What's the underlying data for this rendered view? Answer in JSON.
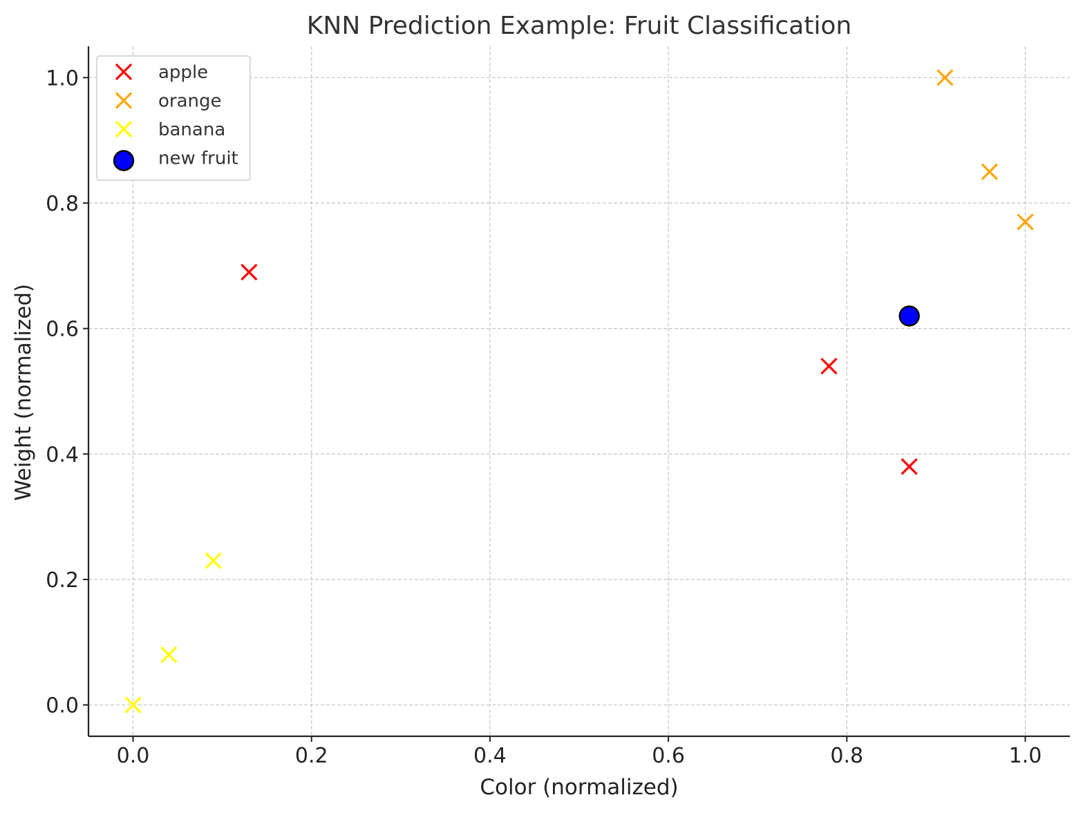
{
  "chart_data": {
    "type": "scatter",
    "title": "KNN Prediction Example: Fruit Classification",
    "xlabel": "Color (normalized)",
    "ylabel": "Weight (normalized)",
    "xlim": [
      -0.05,
      1.05
    ],
    "ylim": [
      -0.05,
      1.05
    ],
    "xticks": [
      0.0,
      0.2,
      0.4,
      0.6,
      0.8,
      1.0
    ],
    "yticks": [
      0.0,
      0.2,
      0.4,
      0.6,
      0.8,
      1.0
    ],
    "xtick_labels": [
      "0.0",
      "0.2",
      "0.4",
      "0.6",
      "0.8",
      "1.0"
    ],
    "ytick_labels": [
      "0.0",
      "0.2",
      "0.4",
      "0.6",
      "0.8",
      "1.0"
    ],
    "grid": true,
    "legend_position": "top-left",
    "series": [
      {
        "name": "apple",
        "marker": "x",
        "color": "#ff0000",
        "points": [
          {
            "x": 0.13,
            "y": 0.69
          },
          {
            "x": 0.78,
            "y": 0.54
          },
          {
            "x": 0.87,
            "y": 0.38
          }
        ]
      },
      {
        "name": "orange",
        "marker": "x",
        "color": "#ffa500",
        "points": [
          {
            "x": 0.91,
            "y": 1.0
          },
          {
            "x": 0.96,
            "y": 0.85
          },
          {
            "x": 1.0,
            "y": 0.77
          }
        ]
      },
      {
        "name": "banana",
        "marker": "x",
        "color": "#ffff00",
        "points": [
          {
            "x": 0.0,
            "y": 0.0
          },
          {
            "x": 0.04,
            "y": 0.08
          },
          {
            "x": 0.09,
            "y": 0.23
          }
        ]
      },
      {
        "name": "new fruit",
        "marker": "circle",
        "color": "#0000ff",
        "edge_color": "#000000",
        "points": [
          {
            "x": 0.87,
            "y": 0.62
          }
        ]
      }
    ]
  }
}
